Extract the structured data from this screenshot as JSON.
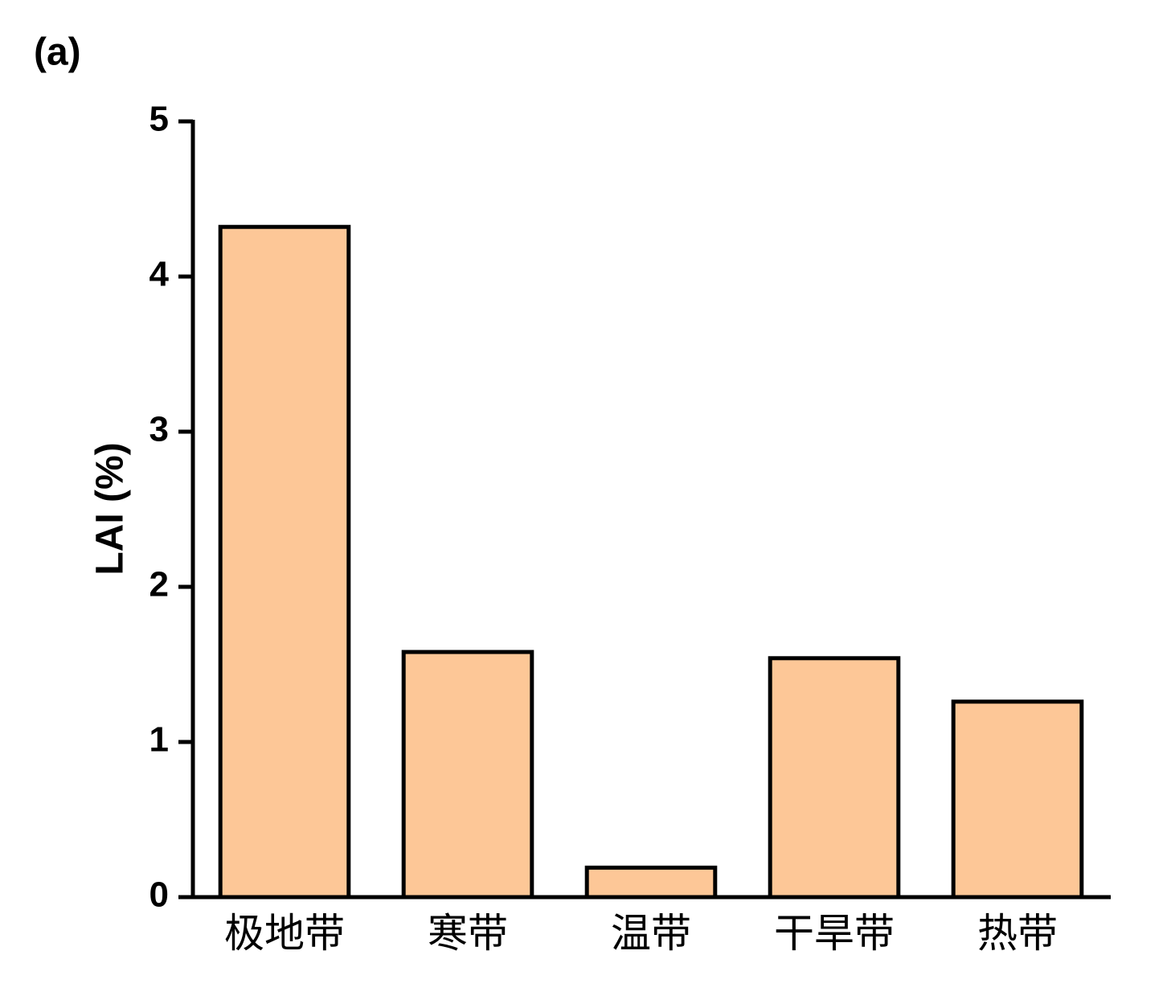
{
  "chart_data": {
    "type": "bar",
    "panel_label": "(a)",
    "y_label": "LAI (%)",
    "categories": [
      "极地带",
      "寒带",
      "温带",
      "干旱带",
      "热带"
    ],
    "values": [
      4.32,
      1.58,
      0.19,
      1.54,
      1.26
    ],
    "color": "#fdc797",
    "ylim": [
      0,
      5
    ],
    "yticks": [
      0,
      1,
      2,
      3,
      4,
      5
    ]
  }
}
